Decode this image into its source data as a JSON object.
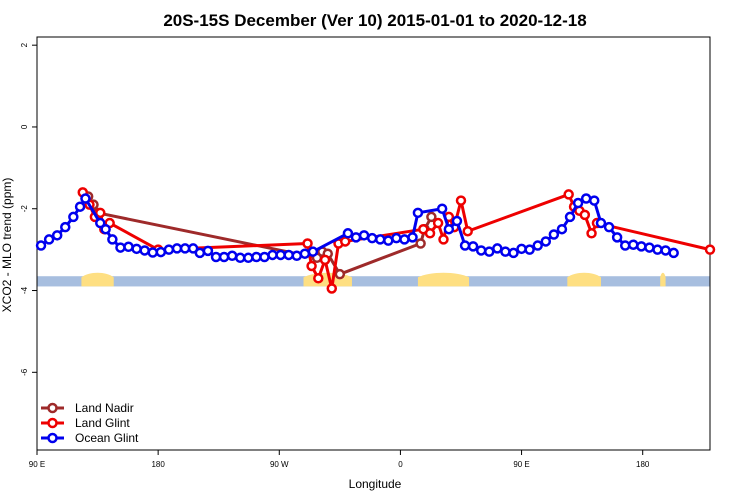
{
  "chart_data": {
    "type": "line",
    "title": "20S-15S December (Ver 10)   2015-01-01 to 2020-12-18",
    "xlabel": "Longitude",
    "ylabel": "XCO2 - MLO trend (ppm)",
    "xlim": [
      0,
      500
    ],
    "ylim": [
      -7.9,
      2.2
    ],
    "x_ticks": [
      {
        "value": 0,
        "label": "90 E"
      },
      {
        "value": 90,
        "label": "180"
      },
      {
        "value": 180,
        "label": "90 W"
      },
      {
        "value": 270,
        "label": "0"
      },
      {
        "value": 360,
        "label": "90 E"
      },
      {
        "value": 450,
        "label": "180"
      }
    ],
    "y_ticks": [
      {
        "value": 2,
        "label": "2"
      },
      {
        "value": 0,
        "label": "0"
      },
      {
        "value": -2,
        "label": "-2"
      },
      {
        "value": -4,
        "label": "-4"
      },
      {
        "value": -6,
        "label": "-6"
      }
    ],
    "grid": false,
    "legend_position": "bottom-left",
    "surface_band": {
      "y_top": -3.65,
      "y_bottom": -3.9,
      "ocean_color": "#a7bedf",
      "land_color": "#fedf82"
    },
    "land_segments": [
      [
        33,
        57
      ],
      [
        198,
        234
      ],
      [
        283,
        321
      ],
      [
        394,
        419
      ],
      [
        463,
        467
      ]
    ],
    "series": [
      {
        "name": "Land Nadir",
        "color": "#9e2a2a",
        "points": [
          [
            38,
            -1.7
          ],
          [
            42,
            -1.9
          ],
          [
            45,
            -2.1
          ],
          [
            208,
            -3.2
          ],
          [
            212,
            -3.05
          ],
          [
            216,
            -3.1
          ],
          [
            225,
            -3.6
          ],
          [
            285,
            -2.85
          ],
          [
            288,
            -2.5
          ],
          [
            293,
            -2.2
          ]
        ]
      },
      {
        "name": "Land Glint",
        "color": "#ee0000",
        "points": [
          [
            34,
            -1.6
          ],
          [
            39,
            -1.9
          ],
          [
            43,
            -2.2
          ],
          [
            47,
            -2.1
          ],
          [
            50,
            -2.5
          ],
          [
            54,
            -2.35
          ],
          [
            90,
            -3.0
          ],
          [
            201,
            -2.85
          ],
          [
            204,
            -3.4
          ],
          [
            209,
            -3.7
          ],
          [
            214,
            -3.25
          ],
          [
            219,
            -3.95
          ],
          [
            224,
            -2.85
          ],
          [
            229,
            -2.8
          ],
          [
            287,
            -2.5
          ],
          [
            292,
            -2.6
          ],
          [
            298,
            -2.35
          ],
          [
            302,
            -2.75
          ],
          [
            306,
            -2.2
          ],
          [
            310,
            -2.45
          ],
          [
            315,
            -1.8
          ],
          [
            320,
            -2.55
          ],
          [
            395,
            -1.65
          ],
          [
            399,
            -1.95
          ],
          [
            403,
            -2.05
          ],
          [
            407,
            -2.15
          ],
          [
            412,
            -2.6
          ],
          [
            416,
            -2.35
          ],
          [
            500,
            -3.0
          ]
        ]
      },
      {
        "name": "Ocean Glint",
        "color": "#0000ee",
        "points": [
          [
            3,
            -2.9
          ],
          [
            9,
            -2.75
          ],
          [
            15,
            -2.65
          ],
          [
            21,
            -2.45
          ],
          [
            27,
            -2.2
          ],
          [
            32,
            -1.95
          ],
          [
            36,
            -1.75
          ],
          [
            47,
            -2.35
          ],
          [
            51,
            -2.5
          ],
          [
            56,
            -2.75
          ],
          [
            62,
            -2.95
          ],
          [
            68,
            -2.93
          ],
          [
            74,
            -2.98
          ],
          [
            80,
            -3.02
          ],
          [
            86,
            -3.07
          ],
          [
            92,
            -3.06
          ],
          [
            98,
            -3.0
          ],
          [
            104,
            -2.97
          ],
          [
            110,
            -2.97
          ],
          [
            116,
            -2.97
          ],
          [
            121,
            -3.08
          ],
          [
            127,
            -3.03
          ],
          [
            133,
            -3.18
          ],
          [
            139,
            -3.18
          ],
          [
            145,
            -3.15
          ],
          [
            151,
            -3.2
          ],
          [
            157,
            -3.2
          ],
          [
            163,
            -3.18
          ],
          [
            169,
            -3.18
          ],
          [
            175,
            -3.13
          ],
          [
            181,
            -3.13
          ],
          [
            187,
            -3.13
          ],
          [
            193,
            -3.15
          ],
          [
            199,
            -3.1
          ],
          [
            205,
            -3.05
          ],
          [
            231,
            -2.6
          ],
          [
            237,
            -2.7
          ],
          [
            243,
            -2.65
          ],
          [
            249,
            -2.72
          ],
          [
            255,
            -2.75
          ],
          [
            261,
            -2.78
          ],
          [
            267,
            -2.72
          ],
          [
            273,
            -2.75
          ],
          [
            279,
            -2.7
          ],
          [
            283,
            -2.1
          ],
          [
            301,
            -2.0
          ],
          [
            306,
            -2.5
          ],
          [
            312,
            -2.3
          ],
          [
            318,
            -2.9
          ],
          [
            324,
            -2.92
          ],
          [
            330,
            -3.02
          ],
          [
            336,
            -3.05
          ],
          [
            342,
            -2.97
          ],
          [
            348,
            -3.05
          ],
          [
            354,
            -3.08
          ],
          [
            360,
            -2.98
          ],
          [
            366,
            -3.0
          ],
          [
            372,
            -2.9
          ],
          [
            378,
            -2.8
          ],
          [
            384,
            -2.63
          ],
          [
            390,
            -2.5
          ],
          [
            396,
            -2.2
          ],
          [
            402,
            -1.86
          ],
          [
            408,
            -1.75
          ],
          [
            414,
            -1.8
          ],
          [
            419,
            -2.35
          ],
          [
            425,
            -2.45
          ],
          [
            431,
            -2.7
          ],
          [
            437,
            -2.9
          ],
          [
            443,
            -2.88
          ],
          [
            449,
            -2.92
          ],
          [
            455,
            -2.95
          ],
          [
            461,
            -3.0
          ],
          [
            467,
            -3.02
          ],
          [
            473,
            -3.08
          ]
        ]
      }
    ]
  }
}
